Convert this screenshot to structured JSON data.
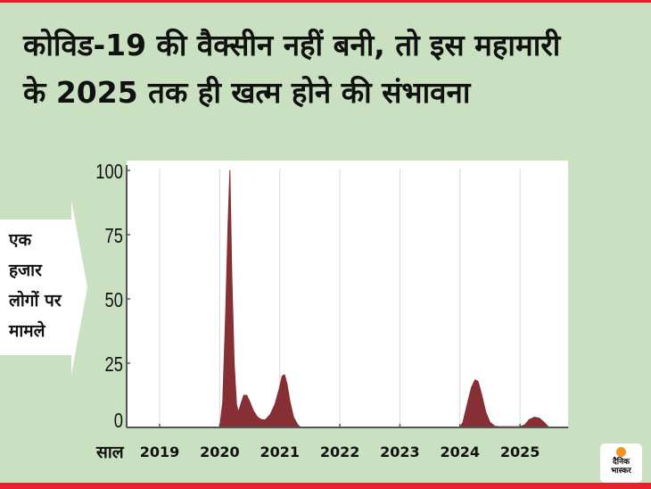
{
  "title": {
    "line1": "कोविड-19 की वैक्सीन नहीं बनी, तो इस महामारी",
    "line2": "के 2025 तक ही खत्म होने की संभावना"
  },
  "y_axis_label": [
    "एक",
    "हजार",
    "लोगों पर",
    "मामले"
  ],
  "logo": {
    "text": "दैनिक भास्कर",
    "line1": "दैनिक",
    "line2": "भास्कर"
  },
  "colors": {
    "background": "#c9e0c1",
    "fill": "#862f34",
    "accent": "#e8222a",
    "logo_dot": "#f39220"
  },
  "chart_data": {
    "type": "area",
    "title": "",
    "xlabel": "साल",
    "ylabel": "एक हजार लोगों पर मामले",
    "xlim": [
      2018.45,
      2025.8
    ],
    "ylim": [
      0,
      100
    ],
    "x_ticks": [
      2019,
      2020,
      2021,
      2022,
      2023,
      2024,
      2025
    ],
    "y_ticks": [
      0,
      25,
      50,
      75,
      100
    ],
    "grid": "vertical",
    "series": [
      {
        "points": [
          [
            2018.45,
            0
          ],
          [
            2020.0,
            0
          ],
          [
            2020.05,
            10
          ],
          [
            2020.1,
            45
          ],
          [
            2020.14,
            80
          ],
          [
            2020.17,
            100
          ],
          [
            2020.2,
            60
          ],
          [
            2020.24,
            25
          ],
          [
            2020.28,
            9
          ],
          [
            2020.31,
            6
          ],
          [
            2020.35,
            9
          ],
          [
            2020.4,
            12.5
          ],
          [
            2020.45,
            12.5
          ],
          [
            2020.5,
            10
          ],
          [
            2020.56,
            6.5
          ],
          [
            2020.63,
            4
          ],
          [
            2020.7,
            3
          ],
          [
            2020.76,
            3
          ],
          [
            2020.84,
            5
          ],
          [
            2020.92,
            9
          ],
          [
            2020.99,
            15
          ],
          [
            2021.04,
            20
          ],
          [
            2021.08,
            20.5
          ],
          [
            2021.12,
            17
          ],
          [
            2021.17,
            10
          ],
          [
            2021.23,
            4
          ],
          [
            2021.3,
            1
          ],
          [
            2021.35,
            0
          ],
          [
            2024.0,
            0
          ],
          [
            2024.05,
            2
          ],
          [
            2024.12,
            9
          ],
          [
            2024.19,
            15.5
          ],
          [
            2024.25,
            18.5
          ],
          [
            2024.3,
            18
          ],
          [
            2024.36,
            13
          ],
          [
            2024.43,
            6
          ],
          [
            2024.5,
            2
          ],
          [
            2024.58,
            0.5
          ],
          [
            2024.65,
            0.3
          ],
          [
            2025.0,
            0.3
          ],
          [
            2025.08,
            1
          ],
          [
            2025.15,
            3
          ],
          [
            2025.24,
            4
          ],
          [
            2025.32,
            3.6
          ],
          [
            2025.4,
            2
          ],
          [
            2025.48,
            0
          ],
          [
            2025.8,
            0
          ]
        ]
      }
    ]
  }
}
